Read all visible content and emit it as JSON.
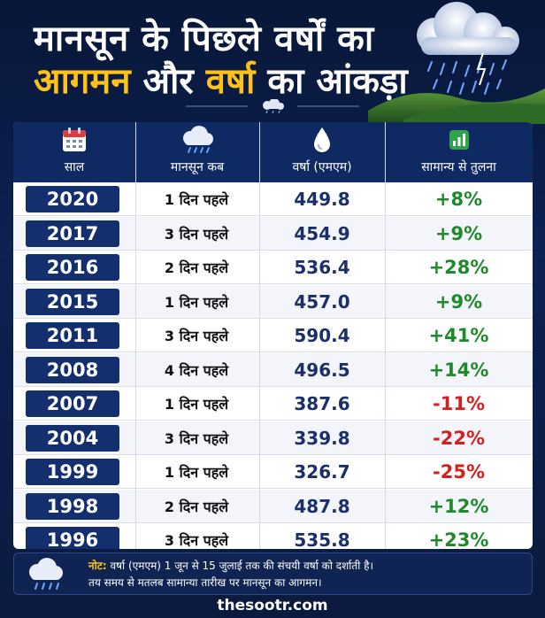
{
  "title": {
    "line1": "मानसून के पिछले वर्षों का",
    "line2_part1": "आगमन",
    "line2_part2": "और",
    "line2_part3": "वर्षा",
    "line2_part4": "का आंकड़ा"
  },
  "table": {
    "headers": [
      "साल",
      "मानसून कब",
      "वर्षा (एमएम)",
      "सामान्य से तुलना"
    ],
    "header_icons": [
      "calendar-icon",
      "rain-cloud-icon",
      "water-drop-icon",
      "bar-chart-icon"
    ],
    "rows": [
      {
        "year": "2020",
        "arrival": "1 दिन पहले",
        "rainfall": "449.8",
        "comparison": "+8%",
        "sign": "pos"
      },
      {
        "year": "2017",
        "arrival": "3 दिन पहले",
        "rainfall": "454.9",
        "comparison": "+9%",
        "sign": "pos"
      },
      {
        "year": "2016",
        "arrival": "2 दिन पहले",
        "rainfall": "536.4",
        "comparison": "+28%",
        "sign": "pos"
      },
      {
        "year": "2015",
        "arrival": "1 दिन पहले",
        "rainfall": "457.0",
        "comparison": "+9%",
        "sign": "pos"
      },
      {
        "year": "2011",
        "arrival": "3 दिन पहले",
        "rainfall": "590.4",
        "comparison": "+41%",
        "sign": "pos"
      },
      {
        "year": "2008",
        "arrival": "4 दिन पहले",
        "rainfall": "496.5",
        "comparison": "+14%",
        "sign": "pos"
      },
      {
        "year": "2007",
        "arrival": "1 दिन पहले",
        "rainfall": "387.6",
        "comparison": "-11%",
        "sign": "neg"
      },
      {
        "year": "2004",
        "arrival": "3 दिन पहले",
        "rainfall": "339.8",
        "comparison": "-22%",
        "sign": "neg"
      },
      {
        "year": "1999",
        "arrival": "1 दिन पहले",
        "rainfall": "326.7",
        "comparison": "-25%",
        "sign": "neg"
      },
      {
        "year": "1998",
        "arrival": "2 दिन पहले",
        "rainfall": "487.8",
        "comparison": "+12%",
        "sign": "pos"
      },
      {
        "year": "1996",
        "arrival": "3 दिन पहले",
        "rainfall": "535.8",
        "comparison": "+23%",
        "sign": "pos"
      }
    ]
  },
  "note": {
    "label": "नोट:",
    "line1": "वर्षा (एमएम) 1 जून से 15 जुलाई तक की संचयी वर्षा को दर्शाती है।",
    "line2": "तय समय से मतलब सामान्या तारीख पर मानसून का आगमन।"
  },
  "footer": "thesootr.com",
  "colors": {
    "background": "#0b1a3e",
    "header_bar": "#0f2a63",
    "year_badge": "#142f6e",
    "accent_yellow": "#ffc21a",
    "positive": "#1f8a2a",
    "negative": "#d51f1f",
    "rainfall_text": "#1b2f6b"
  }
}
